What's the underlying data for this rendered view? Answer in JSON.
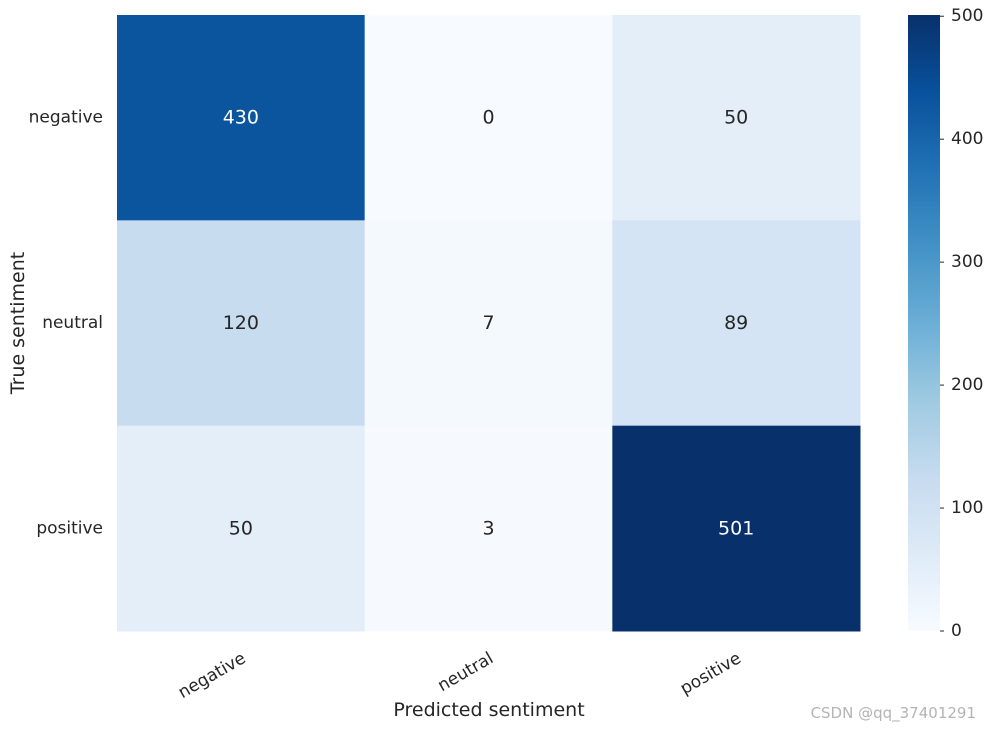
{
  "chart_data": {
    "type": "heatmap",
    "x_categories": [
      "negative",
      "neutral",
      "positive"
    ],
    "y_categories": [
      "negative",
      "neutral",
      "positive"
    ],
    "values": [
      [
        430,
        0,
        50
      ],
      [
        120,
        7,
        89
      ],
      [
        50,
        3,
        501
      ]
    ],
    "xlabel": "Predicted sentiment",
    "ylabel": "True sentiment",
    "colorbar": {
      "range": [
        0,
        501
      ],
      "ticks": [
        0,
        100,
        200,
        300,
        400,
        500
      ],
      "colormap": "Blues"
    },
    "grid": false
  },
  "watermark": "CSDN @qq_37401291"
}
